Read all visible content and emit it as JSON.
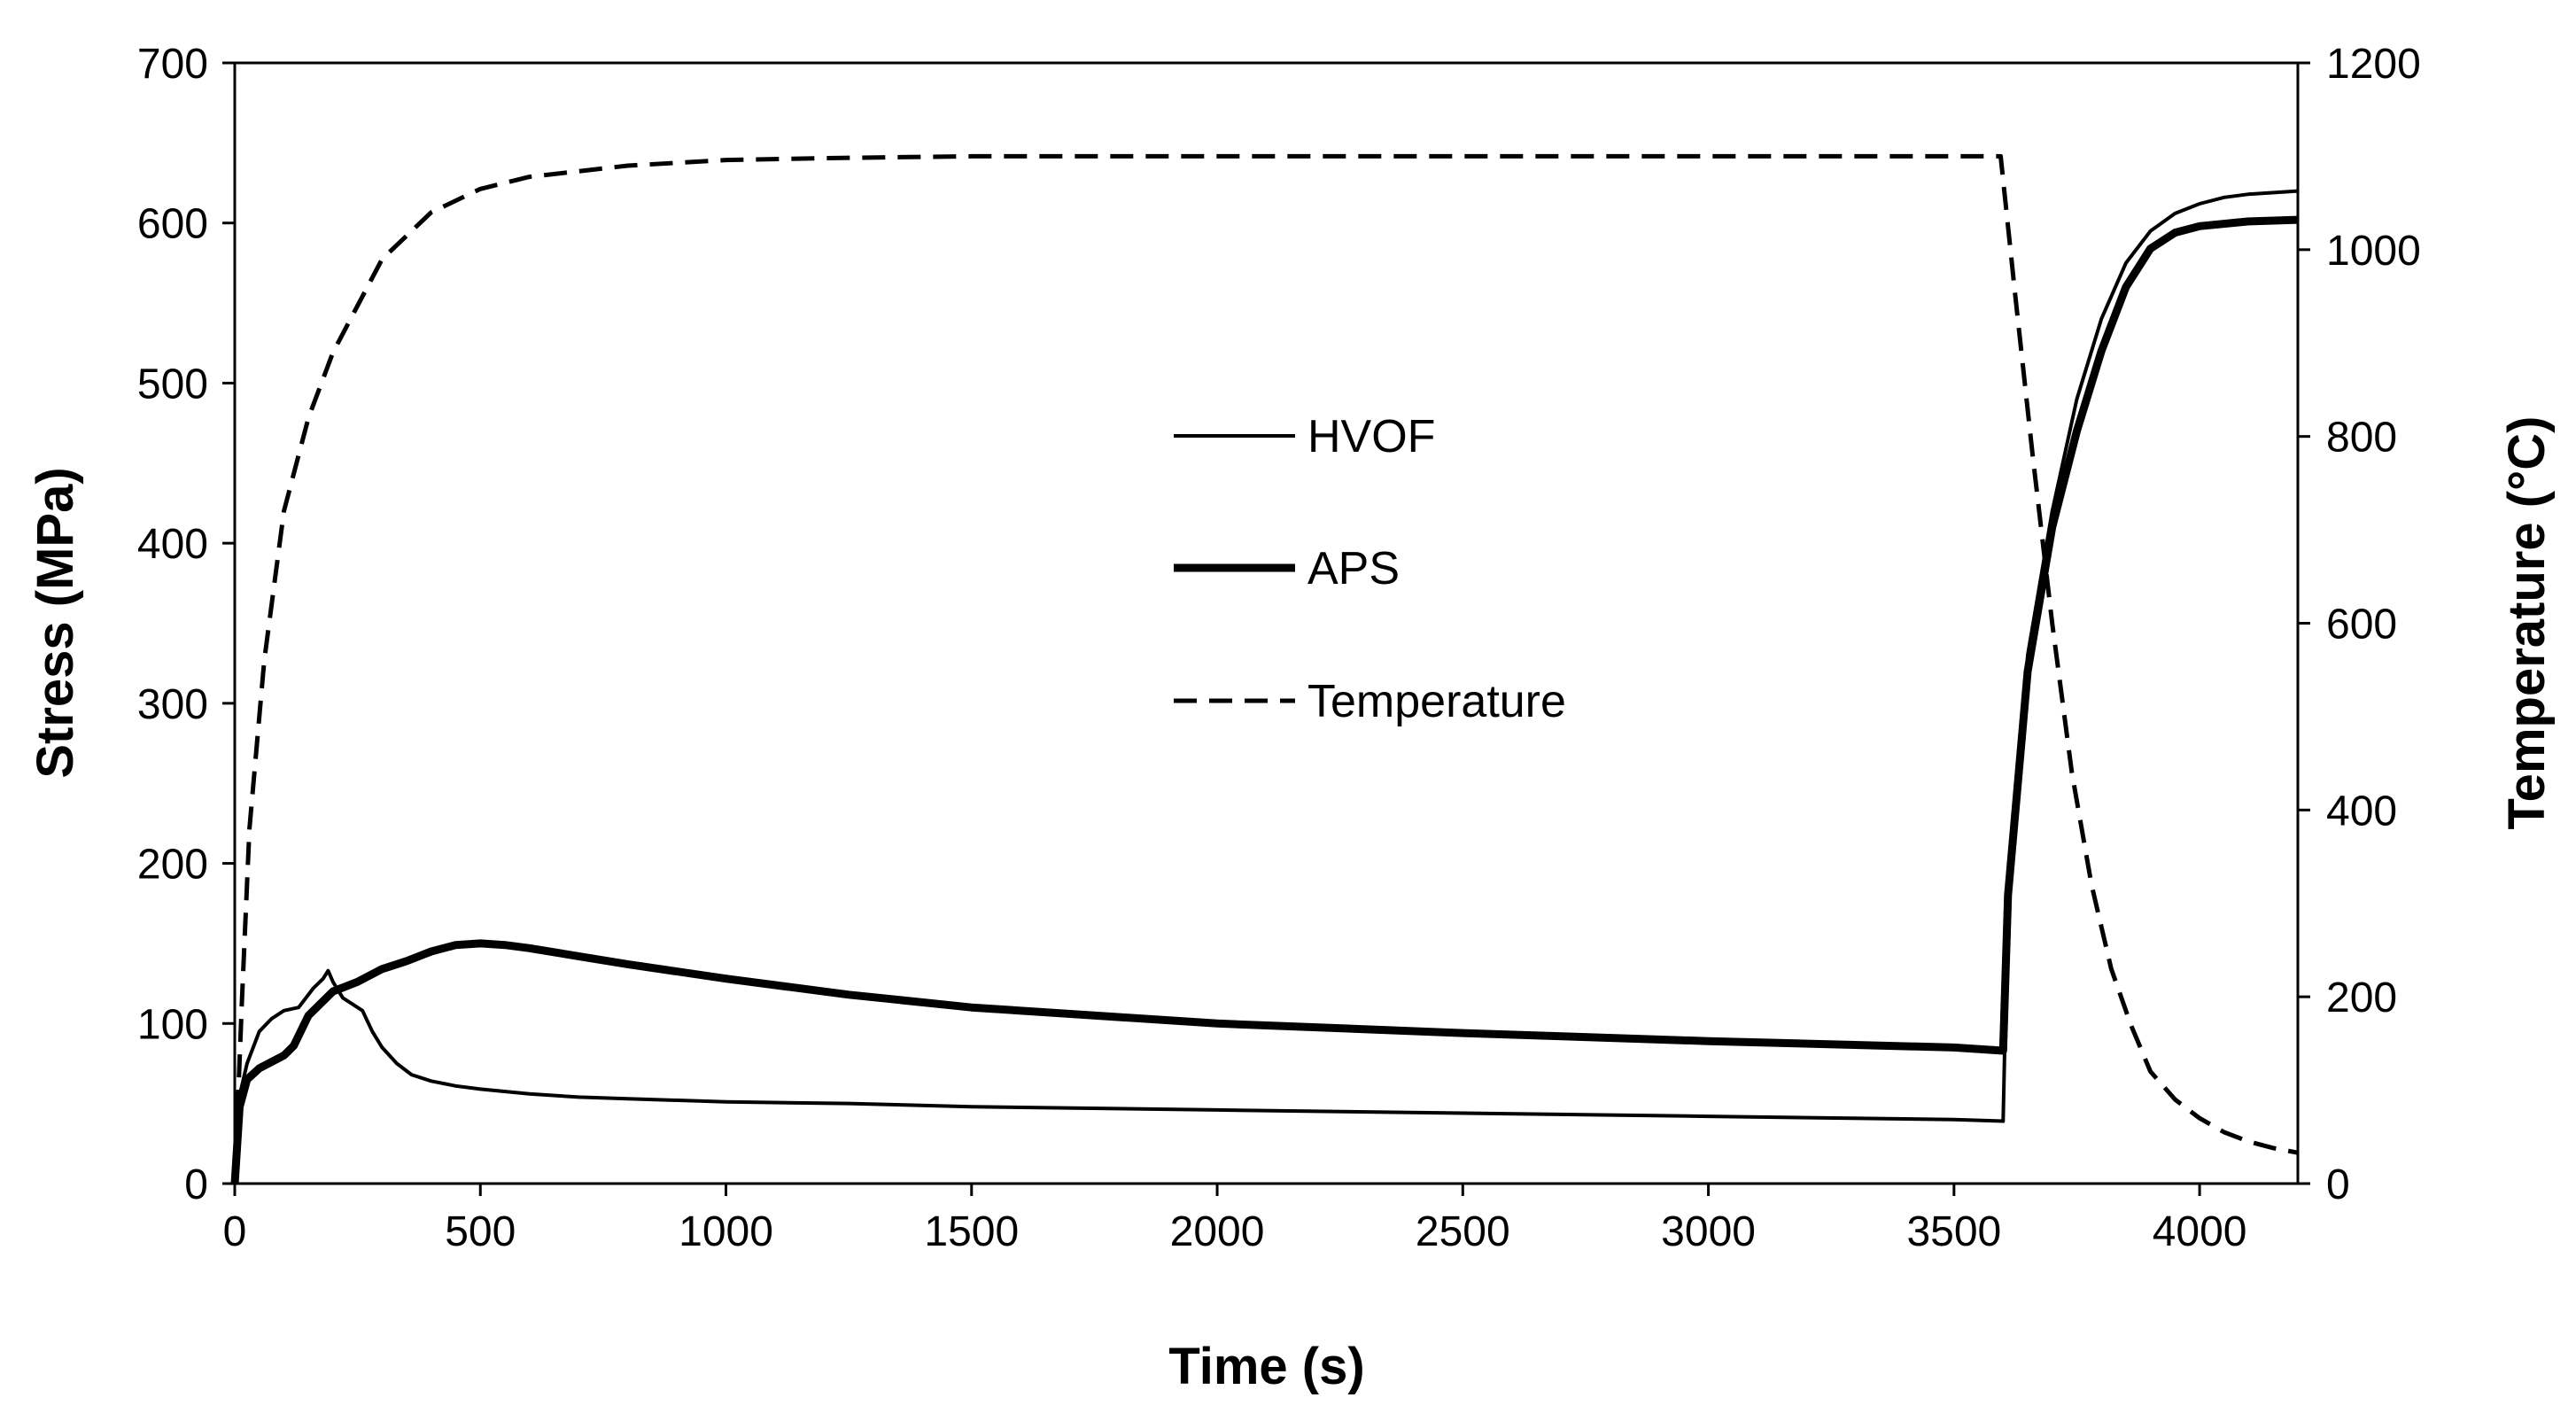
{
  "chart_data": {
    "type": "line",
    "title": "",
    "xlabel": "Time (s)",
    "ylabel": "Stress (MPa)",
    "y2label": "Temperature (°C)",
    "xlim": [
      0,
      4200
    ],
    "ylim": [
      0,
      700
    ],
    "y2lim": [
      0,
      1200
    ],
    "xticks": [
      0,
      500,
      1000,
      1500,
      2000,
      2500,
      3000,
      3500,
      4000
    ],
    "yticks": [
      0,
      100,
      200,
      300,
      400,
      500,
      600,
      700
    ],
    "y2ticks": [
      0,
      200,
      400,
      600,
      800,
      1000,
      1200
    ],
    "grid": false,
    "legend_position": "center",
    "series": [
      {
        "name": "HVOF",
        "axis": "left",
        "style": "solid-thin",
        "x": [
          0,
          10,
          25,
          50,
          75,
          100,
          130,
          160,
          180,
          190,
          200,
          220,
          240,
          260,
          280,
          300,
          330,
          360,
          400,
          450,
          500,
          600,
          700,
          800,
          1000,
          1250,
          1500,
          2000,
          2500,
          3000,
          3500,
          3600,
          3610,
          3650,
          3700,
          3750,
          3800,
          3850,
          3900,
          3950,
          4000,
          4050,
          4100,
          4200
        ],
        "values": [
          0,
          55,
          75,
          95,
          103,
          108,
          110,
          122,
          128,
          133,
          126,
          116,
          112,
          108,
          95,
          85,
          75,
          68,
          64,
          61,
          59,
          56,
          54,
          53,
          51,
          50,
          48,
          46,
          44,
          42,
          40,
          39,
          180,
          330,
          420,
          490,
          540,
          575,
          595,
          606,
          612,
          616,
          618,
          620
        ]
      },
      {
        "name": "APS",
        "axis": "left",
        "style": "solid-thick",
        "x": [
          0,
          10,
          25,
          50,
          100,
          120,
          150,
          200,
          250,
          300,
          350,
          400,
          450,
          500,
          550,
          600,
          700,
          800,
          1000,
          1250,
          1500,
          2000,
          2500,
          3000,
          3500,
          3600,
          3610,
          3650,
          3700,
          3750,
          3800,
          3850,
          3900,
          3950,
          4000,
          4100,
          4200
        ],
        "values": [
          0,
          48,
          65,
          72,
          80,
          86,
          105,
          120,
          126,
          134,
          139,
          145,
          149,
          150,
          149,
          147,
          142,
          137,
          128,
          118,
          110,
          100,
          94,
          89,
          85,
          83,
          180,
          320,
          410,
          470,
          520,
          560,
          584,
          594,
          598,
          601,
          602
        ]
      },
      {
        "name": "Temperature",
        "axis": "right",
        "style": "dashed",
        "x": [
          0,
          15,
          30,
          60,
          100,
          150,
          200,
          300,
          400,
          500,
          600,
          800,
          1000,
          1200,
          1500,
          2000,
          2500,
          3000,
          3500,
          3595,
          3625,
          3660,
          3700,
          3740,
          3780,
          3820,
          3860,
          3900,
          3950,
          4000,
          4050,
          4100,
          4150,
          4200
        ],
        "values": [
          0,
          200,
          380,
          560,
          720,
          820,
          890,
          990,
          1040,
          1065,
          1078,
          1090,
          1096,
          1098,
          1100,
          1100,
          1100,
          1100,
          1100,
          1100,
          950,
          780,
          600,
          440,
          320,
          230,
          170,
          120,
          90,
          70,
          55,
          45,
          38,
          33
        ]
      }
    ]
  }
}
